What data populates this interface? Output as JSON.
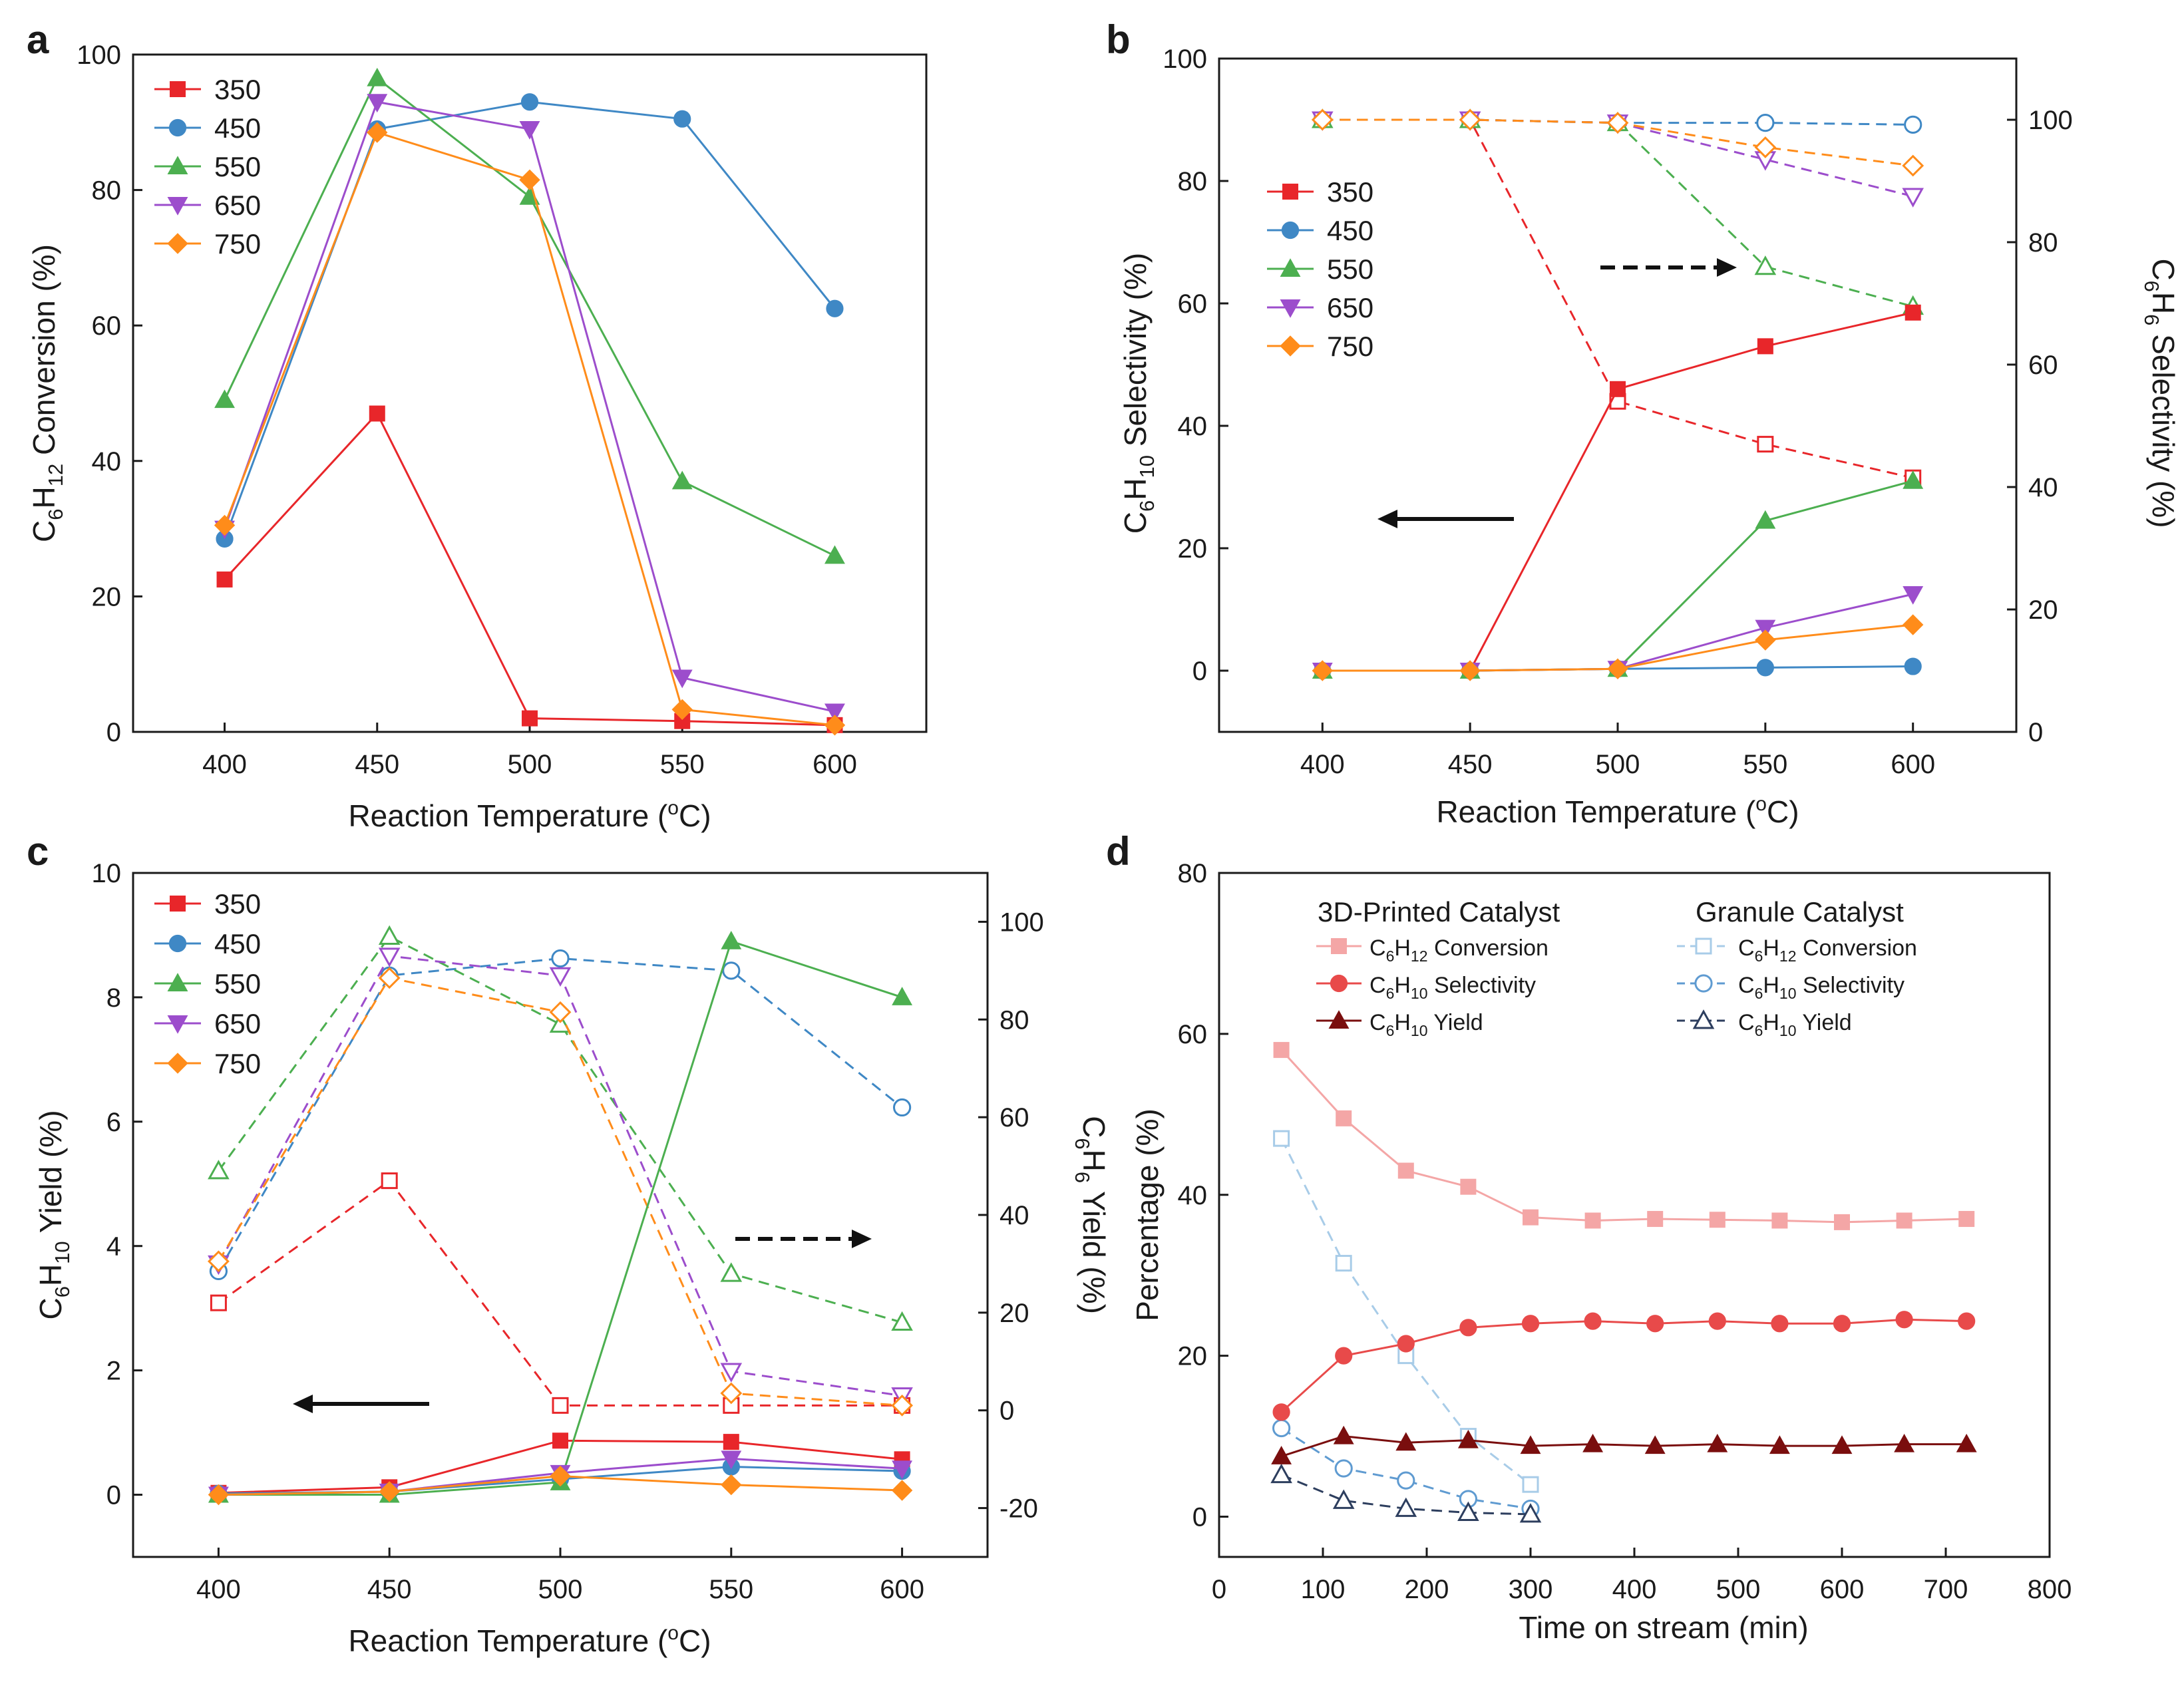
{
  "colors": {
    "s350": "#e8262a",
    "s450": "#3f88c5",
    "s550": "#4caf50",
    "s650": "#9c4dcc",
    "s750": "#ff8c1a",
    "conv3d": "#f4a6a6",
    "sel3d": "#e84a4a",
    "yield3d": "#7a0e0e",
    "conv_gr": "#a8cce8",
    "sel_gr": "#5f9bd1",
    "yield_gr": "#2d3e5e",
    "axis": "#1a1a1a"
  },
  "chart_data": [
    {
      "panel": "a",
      "type": "line",
      "x": [
        400,
        450,
        500,
        550,
        600
      ],
      "xlim": [
        370,
        630
      ],
      "ylim": [
        0,
        100
      ],
      "xticks": [
        400,
        450,
        500,
        550,
        600
      ],
      "yticks": [
        0,
        20,
        40,
        60,
        80,
        100
      ],
      "xlabel": "Reaction Temperature (°C)",
      "ylabel": "C6H12 Conversion (%)",
      "legend": "top-left",
      "series": [
        {
          "name": "350",
          "values": [
            22.5,
            47,
            2,
            1.6,
            1
          ]
        },
        {
          "name": "450",
          "values": [
            28.5,
            89,
            93,
            90.5,
            62.5
          ]
        },
        {
          "name": "550",
          "values": [
            49,
            96.5,
            79,
            37,
            26
          ]
        },
        {
          "name": "650",
          "values": [
            30,
            93,
            89,
            8,
            3
          ]
        },
        {
          "name": "750",
          "values": [
            30.5,
            88.5,
            81.5,
            3.3,
            1
          ]
        }
      ]
    },
    {
      "panel": "b",
      "type": "line",
      "x": [
        400,
        450,
        500,
        550,
        600
      ],
      "xlim": [
        365,
        635
      ],
      "ylim": [
        -10,
        100
      ],
      "y2lim": [
        0,
        110
      ],
      "xticks": [
        400,
        450,
        500,
        550,
        600
      ],
      "yticks": [
        0,
        20,
        40,
        60,
        80,
        100
      ],
      "y2ticks": [
        0,
        20,
        40,
        60,
        80,
        100
      ],
      "xlabel": "Reaction Temperature (°C)",
      "ylabel": "C6H10 Selectivity (%)",
      "y2label": "C6H6 Selectivity (%)",
      "legend": "upper-left",
      "series": [
        {
          "name": "350",
          "values": [
            0,
            0,
            46,
            53,
            58.5
          ]
        },
        {
          "name": "450",
          "values": [
            0,
            0,
            0.3,
            0.5,
            0.7
          ]
        },
        {
          "name": "550",
          "values": [
            0,
            0,
            0.3,
            24.5,
            31
          ]
        },
        {
          "name": "650",
          "values": [
            0,
            0,
            0.3,
            7,
            12.5
          ]
        },
        {
          "name": "750",
          "values": [
            0,
            0,
            0.3,
            5,
            7.5
          ]
        }
      ],
      "series_right": [
        {
          "name": "350",
          "values": [
            100,
            100,
            54,
            47,
            41.5
          ]
        },
        {
          "name": "450",
          "values": [
            100,
            100,
            99.5,
            99.5,
            99.2
          ]
        },
        {
          "name": "550",
          "values": [
            100,
            100,
            99.5,
            76,
            69.5
          ]
        },
        {
          "name": "650",
          "values": [
            100,
            100,
            99.5,
            93.5,
            87.5
          ]
        },
        {
          "name": "750",
          "values": [
            100,
            100,
            99.5,
            95.5,
            92.5
          ]
        }
      ]
    },
    {
      "panel": "c",
      "type": "line",
      "x": [
        400,
        450,
        500,
        550,
        600
      ],
      "xlim": [
        375,
        625
      ],
      "ylim": [
        -1,
        10
      ],
      "y2lim": [
        -30,
        110
      ],
      "xticks": [
        400,
        450,
        500,
        550,
        600
      ],
      "yticks": [
        0,
        2,
        4,
        6,
        8,
        10
      ],
      "y2ticks": [
        -20,
        0,
        20,
        40,
        60,
        80,
        100
      ],
      "xlabel": "Reaction Temperature (°C)",
      "ylabel": "C6H10 Yield (%)",
      "y2label": "C6H6 Yield (%)",
      "legend": "top-left",
      "series": [
        {
          "name": "350",
          "values": [
            0.03,
            0.12,
            0.87,
            0.85,
            0.57
          ]
        },
        {
          "name": "450",
          "values": [
            0.02,
            0.05,
            0.25,
            0.45,
            0.38
          ]
        },
        {
          "name": "550",
          "values": [
            0,
            0,
            0.2,
            8.9,
            8
          ]
        },
        {
          "name": "650",
          "values": [
            0,
            0.05,
            0.35,
            0.58,
            0.42
          ]
        },
        {
          "name": "750",
          "values": [
            0,
            0.05,
            0.3,
            0.16,
            0.07
          ]
        }
      ],
      "series_right": [
        {
          "name": "350",
          "values": [
            22,
            47,
            1,
            1,
            1
          ]
        },
        {
          "name": "450",
          "values": [
            28.5,
            89,
            92.5,
            90,
            62
          ]
        },
        {
          "name": "550",
          "values": [
            49,
            97,
            79,
            28,
            18
          ]
        },
        {
          "name": "650",
          "values": [
            30,
            93,
            89,
            8,
            3
          ]
        },
        {
          "name": "750",
          "values": [
            30.5,
            88.5,
            81.5,
            3.5,
            1
          ]
        }
      ]
    },
    {
      "panel": "d",
      "type": "line",
      "xlim": [
        0,
        800
      ],
      "ylim": [
        -5,
        80
      ],
      "xticks": [
        0,
        100,
        200,
        300,
        400,
        500,
        600,
        700,
        800
      ],
      "yticks": [
        0,
        20,
        40,
        60,
        80
      ],
      "xlabel": "Time on stream (min)",
      "ylabel": "Percentage (%)",
      "legend": "top",
      "series": [
        {
          "name": "3D-Printed C6H12 Conversion",
          "x": [
            60,
            120,
            180,
            240,
            300,
            360,
            420,
            480,
            540,
            600,
            660,
            720
          ],
          "values": [
            58,
            49.5,
            43,
            41,
            37.2,
            36.8,
            37,
            36.9,
            36.8,
            36.6,
            36.8,
            37
          ]
        },
        {
          "name": "3D-Printed C6H10 Selectivity",
          "x": [
            60,
            120,
            180,
            240,
            300,
            360,
            420,
            480,
            540,
            600,
            660,
            720
          ],
          "values": [
            13,
            20,
            21.5,
            23.5,
            24,
            24.3,
            24,
            24.3,
            24,
            24,
            24.5,
            24.3
          ]
        },
        {
          "name": "3D-Printed C6H10 Yield",
          "x": [
            60,
            120,
            180,
            240,
            300,
            360,
            420,
            480,
            540,
            600,
            660,
            720
          ],
          "values": [
            7.5,
            10,
            9.2,
            9.5,
            8.8,
            9,
            8.8,
            9,
            8.8,
            8.8,
            9,
            9
          ]
        },
        {
          "name": "Granule C6H12 Conversion",
          "x": [
            60,
            120,
            180,
            240,
            300
          ],
          "values": [
            47,
            31.5,
            20,
            10,
            4
          ]
        },
        {
          "name": "Granule C6H10 Selectivity",
          "x": [
            60,
            120,
            180,
            240,
            300
          ],
          "values": [
            11,
            6,
            4.5,
            2.2,
            1
          ]
        },
        {
          "name": "Granule C6H10 Yield",
          "x": [
            60,
            120,
            180,
            240,
            300
          ],
          "values": [
            5.2,
            2,
            1,
            0.5,
            0.3
          ]
        }
      ]
    }
  ],
  "labels": {
    "panel_a": "a",
    "panel_b": "b",
    "panel_c": "c",
    "panel_d": "d",
    "xlabel_temp_pre": "Reaction Temperature (",
    "xlabel_temp_sup": "o",
    "xlabel_temp_post": "C)",
    "xlabel_time": "Time on stream (min)",
    "ylabel_percentage": "Percentage (%)",
    "legend_series": [
      "350",
      "450",
      "550",
      "650",
      "750"
    ],
    "group_3d": "3D-Printed Catalyst",
    "group_granule": "Granule Catalyst",
    "leg_conv": "Conversion",
    "leg_sel": "Selectivity",
    "leg_yield": "Yield"
  }
}
